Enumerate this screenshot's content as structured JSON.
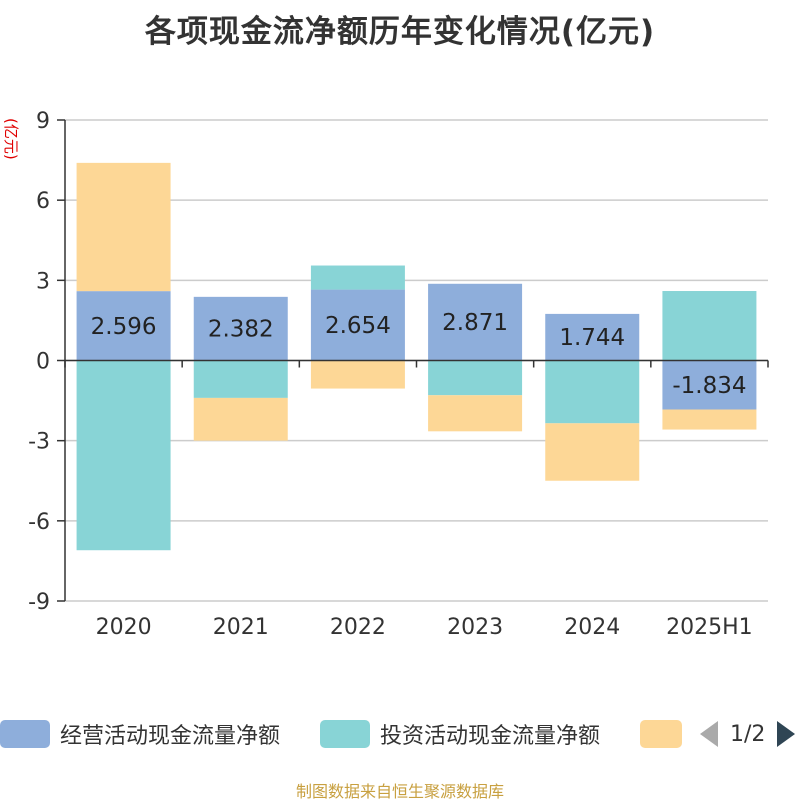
{
  "title": "各项现金流净额历年变化情况(亿元)",
  "unit": "(亿元)",
  "footer": "制图数据来自恒生聚源数据库",
  "legend": {
    "items": [
      {
        "label": "经营活动现金流量净额",
        "color": "#8eaedb"
      },
      {
        "label": "投资活动现金流量净额",
        "color": "#88d4d6"
      },
      {
        "label": "",
        "color": "#fdd796"
      }
    ],
    "page": "1/2"
  },
  "chart_data": {
    "type": "bar",
    "stacked": true,
    "categories": [
      "2020",
      "2021",
      "2022",
      "2023",
      "2024",
      "2025H1"
    ],
    "ylim": [
      -9,
      9
    ],
    "yticks": [
      "9",
      "6",
      "3",
      "0",
      "-3",
      "-6",
      "-9"
    ],
    "grid": true,
    "series": [
      {
        "name": "经营活动现金流量净额",
        "color": "#8eaedb",
        "values": [
          2.596,
          2.382,
          2.654,
          2.871,
          1.744,
          -1.834
        ],
        "labels": [
          "2.596",
          "2.382",
          "2.654",
          "2.871",
          "1.744",
          "-1.834"
        ]
      },
      {
        "name": "投资活动现金流量净额",
        "color": "#88d4d6",
        "values": [
          -7.1,
          -1.4,
          0.9,
          -1.3,
          -2.35,
          2.6
        ]
      },
      {
        "color": "#fdd796",
        "values": [
          4.8,
          -1.6,
          -1.05,
          -1.35,
          -2.15,
          -0.75
        ]
      }
    ]
  }
}
